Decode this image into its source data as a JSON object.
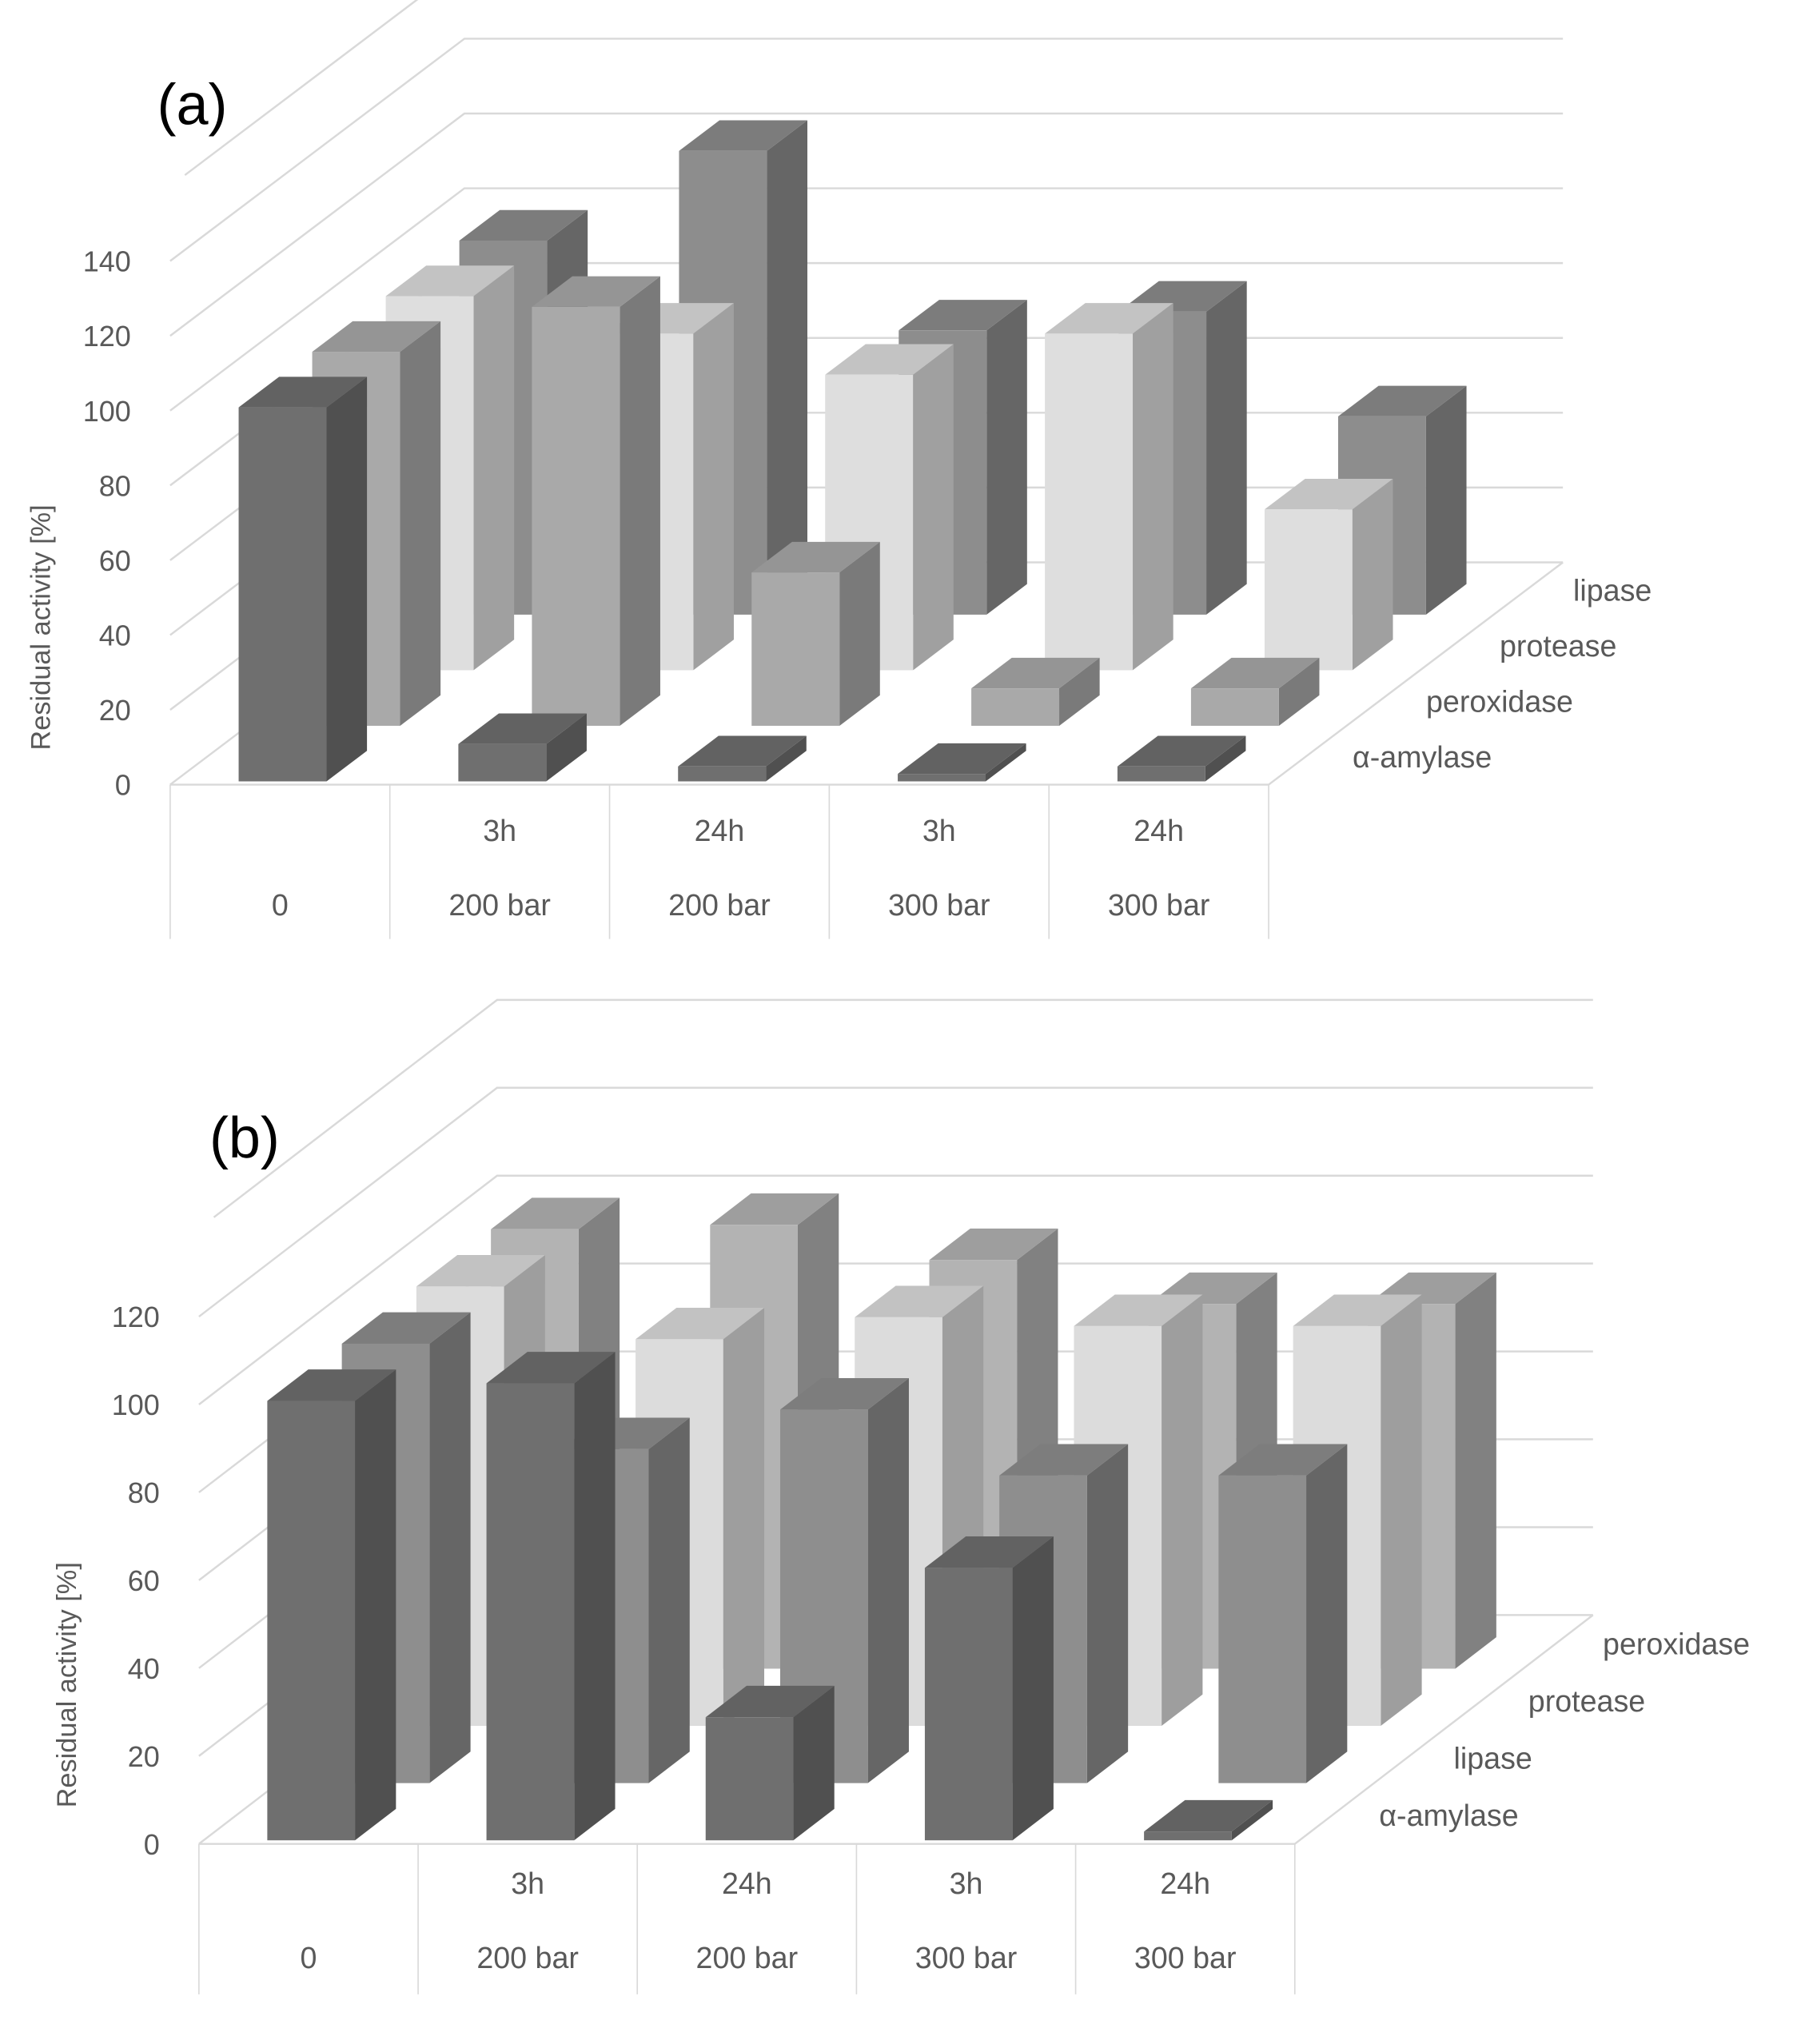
{
  "chart_data": [
    {
      "type": "bar",
      "panel_label": "(a)",
      "ylabel": "Residual activity [%]",
      "ylim": [
        0,
        140
      ],
      "yticks": [
        "0",
        "20",
        "40",
        "60",
        "80",
        "100",
        "120",
        "140"
      ],
      "grid": true,
      "projection": "3d",
      "categories": [
        [
          "",
          "0"
        ],
        [
          "3h",
          "200 bar"
        ],
        [
          "24h",
          "200 bar"
        ],
        [
          "3h",
          "300 bar"
        ],
        [
          "24h",
          "300 bar"
        ]
      ],
      "series": [
        {
          "name": "α-amylase",
          "color": "#6f6f6f",
          "values": [
            100,
            10,
            4,
            2,
            4
          ]
        },
        {
          "name": "peroxidase",
          "color": "#a9a9a9",
          "values": [
            100,
            112,
            41,
            10,
            10
          ]
        },
        {
          "name": "protease",
          "color": "#dedede",
          "values": [
            100,
            90,
            79,
            90,
            43
          ]
        },
        {
          "name": "lipase",
          "color": "#8d8d8d",
          "values": [
            100,
            124,
            76,
            81,
            53
          ]
        }
      ]
    },
    {
      "type": "bar",
      "panel_label": "(b)",
      "ylabel": "Residual activity [%]",
      "ylim": [
        0,
        120
      ],
      "yticks": [
        "0",
        "20",
        "40",
        "60",
        "80",
        "100",
        "120"
      ],
      "grid": true,
      "projection": "3d",
      "categories": [
        [
          "",
          "0"
        ],
        [
          "3h",
          "200 bar"
        ],
        [
          "24h",
          "200 bar"
        ],
        [
          "3h",
          "300 bar"
        ],
        [
          "24h",
          "300 bar"
        ]
      ],
      "series": [
        {
          "name": "α-amylase",
          "color": "#6f6f6f",
          "values": [
            100,
            104,
            28,
            62,
            2
          ]
        },
        {
          "name": "lipase",
          "color": "#8e8e8e",
          "values": [
            100,
            76,
            85,
            70,
            70
          ]
        },
        {
          "name": "protease",
          "color": "#dcdcdc",
          "values": [
            100,
            88,
            93,
            91,
            91
          ]
        },
        {
          "name": "peroxidase",
          "color": "#b3b3b3",
          "values": [
            100,
            101,
            93,
            83,
            83
          ]
        }
      ]
    }
  ]
}
